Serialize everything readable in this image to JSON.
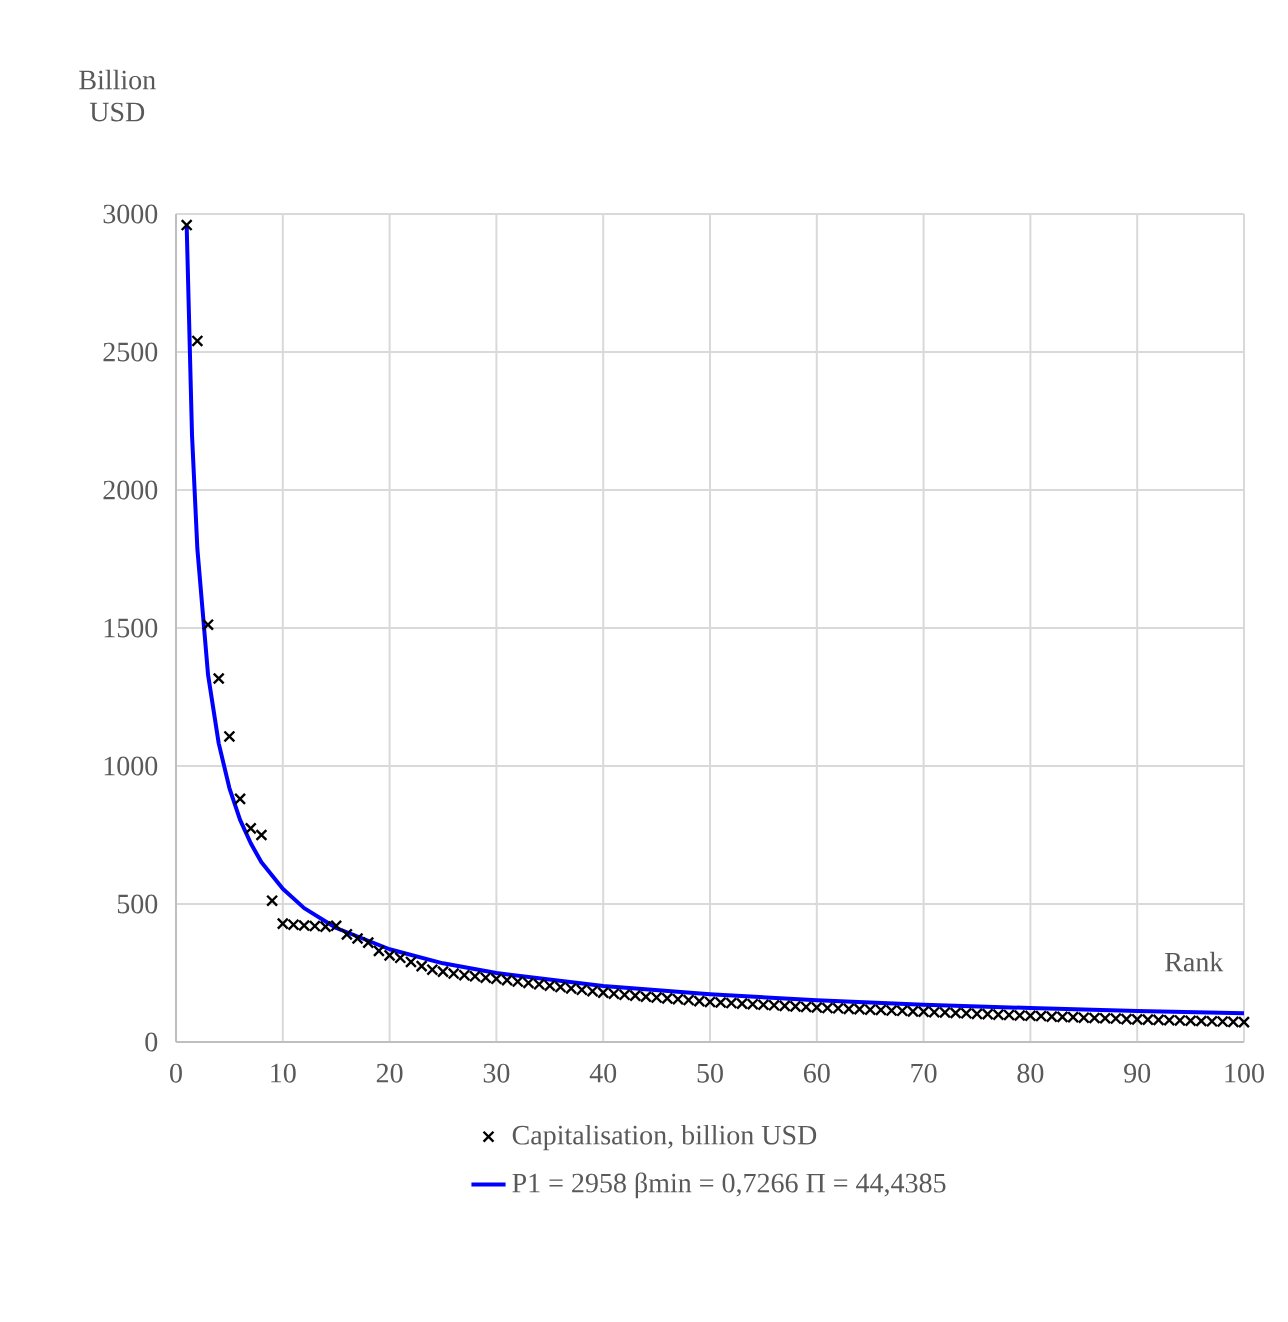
{
  "chart_data": {
    "type": "scatter",
    "xlabel": "Rank",
    "ylabel": "Billion USD",
    "xlim": [
      0,
      100
    ],
    "ylim": [
      0,
      3000
    ],
    "xticks": [
      0,
      10,
      20,
      30,
      40,
      50,
      60,
      70,
      80,
      90,
      100
    ],
    "yticks": [
      0,
      500,
      1000,
      1500,
      2000,
      2500,
      3000
    ],
    "grid": true,
    "legend": "bottom",
    "series": [
      {
        "name": "Capitalisation, billion USD",
        "marker": "cross",
        "color": "#000000",
        "x": [
          1,
          2,
          3,
          4,
          5,
          6,
          7,
          8,
          9,
          10,
          11,
          12,
          13,
          14,
          15,
          16,
          17,
          18,
          19,
          20,
          21,
          22,
          23,
          24,
          25,
          26,
          27,
          28,
          29,
          30,
          31,
          32,
          33,
          34,
          35,
          36,
          37,
          38,
          39,
          40,
          41,
          42,
          43,
          44,
          45,
          46,
          47,
          48,
          49,
          50,
          51,
          52,
          53,
          54,
          55,
          56,
          57,
          58,
          59,
          60,
          61,
          62,
          63,
          64,
          65,
          66,
          67,
          68,
          69,
          70,
          71,
          72,
          73,
          74,
          75,
          76,
          77,
          78,
          79,
          80,
          81,
          82,
          83,
          84,
          85,
          86,
          87,
          88,
          89,
          90,
          91,
          92,
          93,
          94,
          95,
          96,
          97,
          98,
          99,
          100
        ],
        "values": [
          2960,
          2540,
          1512,
          1317,
          1107,
          881,
          774,
          750,
          512,
          429,
          425,
          422,
          420,
          418,
          421,
          390,
          375,
          360,
          330,
          314,
          305,
          290,
          275,
          262,
          255,
          248,
          242,
          238,
          233,
          229,
          224,
          219,
          214,
          209,
          204,
          199,
          194,
          189,
          184,
          179,
          175,
          171,
          168,
          164,
          161,
          158,
          155,
          152,
          148,
          145,
          143,
          141,
          139,
          137,
          135,
          133,
          131,
          129,
          127,
          125,
          123,
          122,
          120,
          119,
          117,
          116,
          114,
          113,
          111,
          110,
          108,
          107,
          105,
          104,
          102,
          101,
          99,
          98,
          96,
          95,
          94,
          92,
          91,
          90,
          88,
          87,
          86,
          85,
          83,
          82,
          81,
          80,
          79,
          78,
          77,
          76,
          75,
          74,
          73,
          72
        ]
      },
      {
        "name": "P1 = 2958   βmin = 0,7266   Π = 44,4385",
        "type": "line",
        "marker": "none",
        "line_style": "solid",
        "color": "#0000ff",
        "x": [
          1,
          1.5,
          2,
          3,
          4,
          5,
          6,
          7,
          8,
          10,
          12,
          15,
          20,
          25,
          30,
          40,
          50,
          60,
          70,
          80,
          90,
          100
        ],
        "values": [
          2958,
          2199,
          1787,
          1331,
          1082,
          920,
          805,
          720,
          651,
          555,
          485,
          413,
          336,
          285,
          250,
          203,
          173,
          151,
          135,
          123,
          112,
          104
        ]
      }
    ]
  }
}
